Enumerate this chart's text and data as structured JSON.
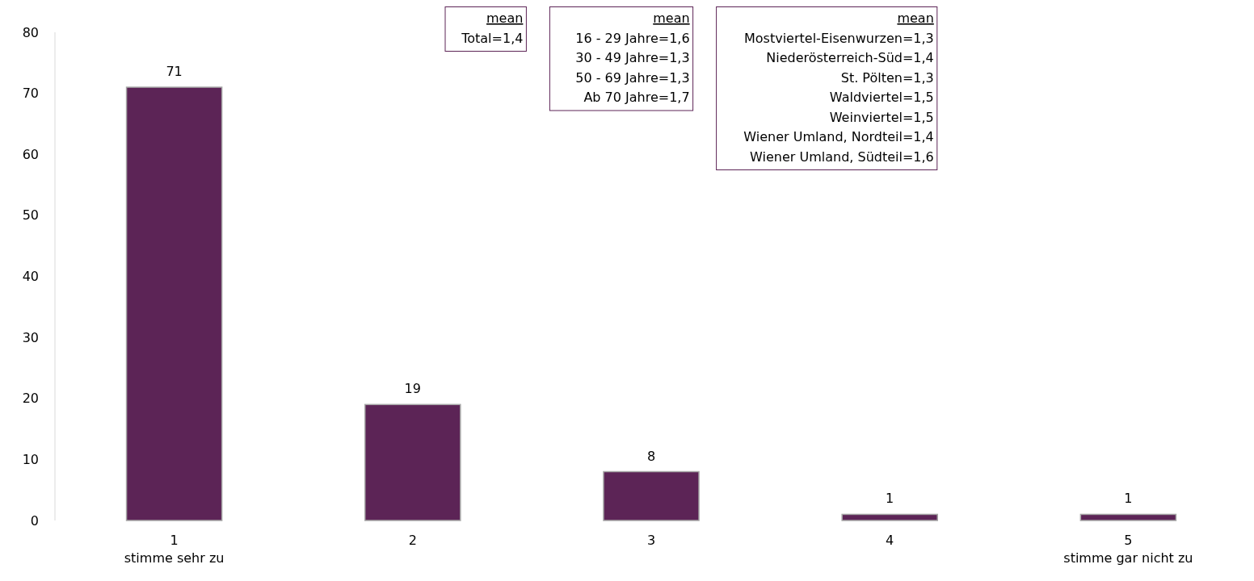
{
  "chart_data": {
    "type": "bar",
    "categories": [
      "1\nstimme sehr zu",
      "2",
      "3",
      "4",
      "5\nstimme gar nicht zu"
    ],
    "values": [
      71,
      19,
      8,
      1,
      1
    ],
    "color": "#5c2456",
    "ylim": [
      0,
      80
    ],
    "yticks": [
      0,
      10,
      20,
      30,
      40,
      50,
      60,
      70,
      80
    ],
    "data_labels": true,
    "grid": false,
    "annotations": [
      "mean\nTotal=1,4",
      "mean\n16 - 29 Jahre=1,6\n30 - 49 Jahre=1,3\n50 - 69 Jahre=1,3\nAb 70 Jahre=1,7",
      "mean\nMostviertel-Eisenwurzen=1,3\nNiederösterreich-Süd=1,4\nSt. Pölten=1,3\nWaldviertel=1,5\nWeinviertel=1,5\nWiener Umland, Nordteil=1,4\nWiener Umland, Südteil=1,6"
    ]
  }
}
